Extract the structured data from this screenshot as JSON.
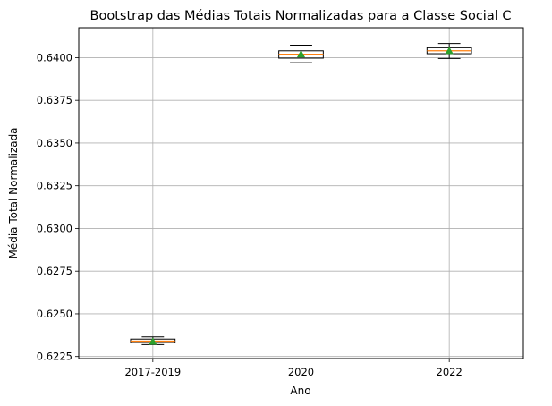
{
  "chart_data": {
    "type": "boxplot",
    "title": "Bootstrap das Médias Totais Normalizadas para a Classe Social C",
    "xlabel": "Ano",
    "ylabel": "Média Total Normalizada",
    "categories": [
      "2017-2019",
      "2020",
      "2022"
    ],
    "boxes": [
      {
        "category": "2017-2019",
        "whisker_low": 0.6232,
        "q1": 0.62332,
        "median": 0.6234,
        "q3": 0.62352,
        "whisker_high": 0.62365,
        "mean": 0.62338
      },
      {
        "category": "2020",
        "whisker_low": 0.6397,
        "q1": 0.63997,
        "median": 0.6402,
        "q3": 0.6404,
        "whisker_high": 0.64073,
        "mean": 0.6402
      },
      {
        "category": "2022",
        "whisker_low": 0.63995,
        "q1": 0.64023,
        "median": 0.6404,
        "q3": 0.64058,
        "whisker_high": 0.64083,
        "mean": 0.6404
      }
    ],
    "yticks": [
      0.6225,
      0.625,
      0.6275,
      0.63,
      0.6325,
      0.635,
      0.6375,
      0.64
    ],
    "ytick_labels": [
      "0.6225",
      "0.6250",
      "0.6275",
      "0.6300",
      "0.6325",
      "0.6350",
      "0.6375",
      "0.6400"
    ],
    "ylim": [
      0.62238,
      0.64175
    ],
    "grid": true,
    "colors": {
      "box_edge": "#000000",
      "median": "#ff7f0e",
      "mean_marker": "#2ca02c",
      "grid": "#b0b0b0"
    }
  }
}
